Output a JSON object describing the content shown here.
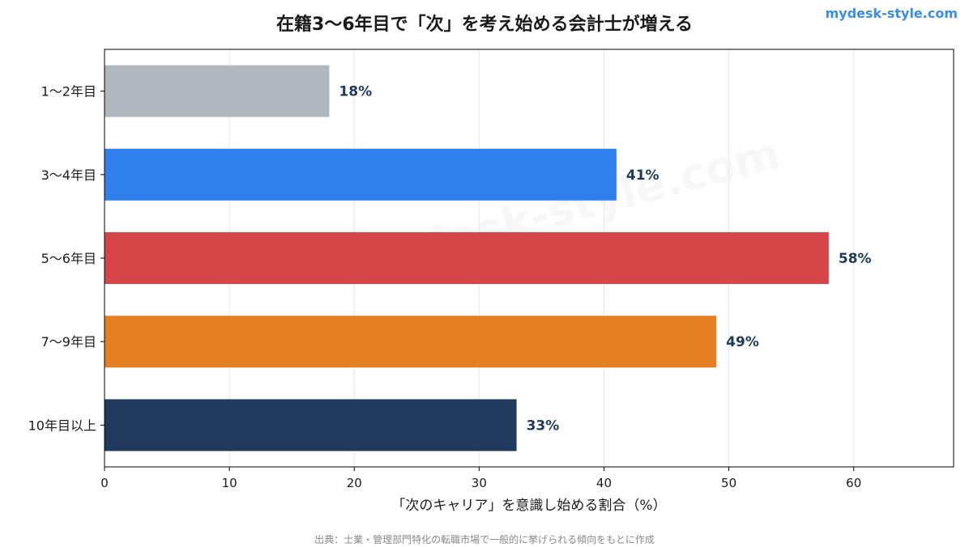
{
  "brand": "mydesk-style.com",
  "watermark": "mydesk-style.com",
  "source_note": "出典：士業・管理部門特化の転職市場で一般的に挙げられる傾向をもとに作成",
  "colors": {
    "axis": "#000000",
    "grid": "#e6e6e6",
    "label": "#1f3a5c"
  },
  "chart_data": {
    "type": "bar",
    "orientation": "horizontal",
    "title": "在籍3〜6年目で「次」を考え始める会計士が増える",
    "xlabel": "「次のキャリア」を意識し始める割合（%）",
    "ylabel": "",
    "categories": [
      "1〜2年目",
      "3〜4年目",
      "5〜6年目",
      "7〜9年目",
      "10年目以上"
    ],
    "values": [
      18,
      41,
      58,
      49,
      33
    ],
    "value_labels": [
      "18%",
      "41%",
      "58%",
      "49%",
      "33%"
    ],
    "bar_colors": [
      "#b1b7be",
      "#2f80ed",
      "#d64648",
      "#e47f22",
      "#1f3a5c"
    ],
    "xlim": [
      0,
      68
    ],
    "xticks": [
      0,
      10,
      20,
      30,
      40,
      50,
      60
    ],
    "grid": "vertical",
    "legend": "none"
  }
}
